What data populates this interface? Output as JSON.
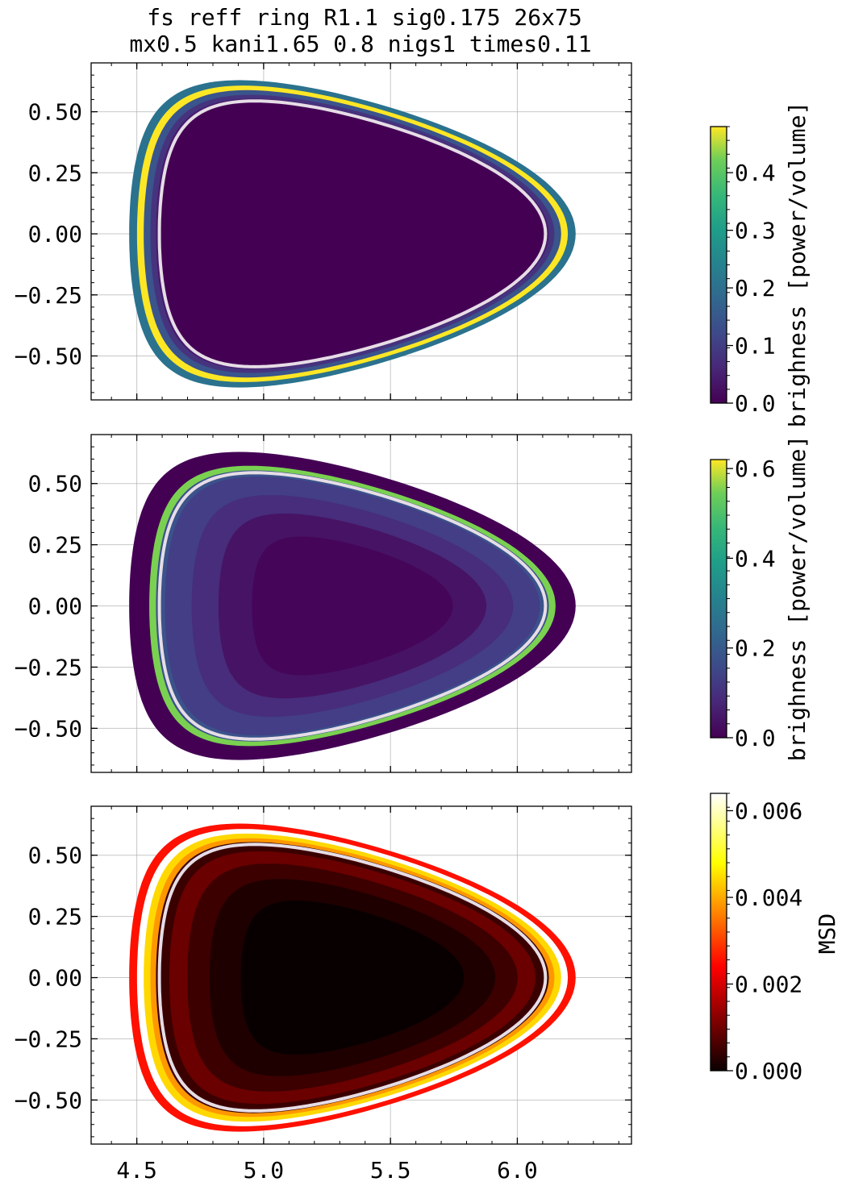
{
  "title_lines": [
    "fs reff ring R1.1 sig0.175 26x75",
    "mx0.5 kani1.65 0.8 nigs1 times0.11"
  ],
  "chart_data": [
    {
      "type": "heatmap",
      "panel": "top",
      "xlim": [
        4.32,
        6.45
      ],
      "ylim": [
        -0.68,
        0.7
      ],
      "x_ticks": [
        4.5,
        5.0,
        5.5,
        6.0
      ],
      "y_ticks": [
        "0.50",
        "0.25",
        "0.00",
        "−0.25",
        "−0.50"
      ],
      "grid": true,
      "colormap": "viridis",
      "colorbar": {
        "label": "brighness [power/volume]",
        "range": [
          0.0,
          0.48
        ],
        "ticks": [
          "0.0",
          "0.1",
          "0.2",
          "0.3",
          "0.4"
        ]
      },
      "shape": {
        "R0": 5.35,
        "minor_radius": 0.88,
        "kappa": 1.3,
        "delta": 0.53
      },
      "rings": [
        {
          "rho": 1.0,
          "color": "#2b728e"
        },
        {
          "rho": 0.965,
          "color": "#fde725"
        },
        {
          "rho": 0.935,
          "color": "#3a548c"
        },
        {
          "rho": 0.905,
          "color": "#46337e"
        },
        {
          "rho": 0.88,
          "color": "#481b6d"
        },
        {
          "rho": 0.86,
          "color": "#440154"
        }
      ],
      "separatrix_rho": 0.865
    },
    {
      "type": "heatmap",
      "panel": "middle",
      "xlim": [
        4.32,
        6.45
      ],
      "ylim": [
        -0.68,
        0.7
      ],
      "x_ticks": [
        4.5,
        5.0,
        5.5,
        6.0
      ],
      "y_ticks": [
        "0.50",
        "0.25",
        "0.00",
        "−0.25",
        "−0.50"
      ],
      "grid": true,
      "colormap": "viridis",
      "colorbar": {
        "label": "brighness [power/volume]",
        "range": [
          0.0,
          0.62
        ],
        "ticks": [
          "0.0",
          "0.2",
          "0.4",
          "0.6"
        ]
      },
      "shape": {
        "R0": 5.35,
        "minor_radius": 0.88,
        "kappa": 1.3,
        "delta": 0.53
      },
      "rings": [
        {
          "rho": 1.0,
          "color": "#440154"
        },
        {
          "rho": 0.91,
          "color": "#7ad151"
        },
        {
          "rho": 0.88,
          "color": "#3b528b"
        },
        {
          "rho": 0.84,
          "color": "#433e85"
        },
        {
          "rho": 0.72,
          "color": "#472d7b"
        },
        {
          "rho": 0.6,
          "color": "#471365"
        },
        {
          "rho": 0.45,
          "color": "#450559"
        }
      ],
      "separatrix_rho": 0.865
    },
    {
      "type": "heatmap",
      "panel": "bottom",
      "xlim": [
        4.32,
        6.45
      ],
      "ylim": [
        -0.68,
        0.7
      ],
      "x_ticks": [
        "4.5",
        "5.0",
        "5.5",
        "6.0"
      ],
      "y_ticks": [
        "0.50",
        "0.25",
        "0.00",
        "−0.25",
        "−0.50"
      ],
      "grid": true,
      "colormap": "hot",
      "colorbar": {
        "label": "MSD",
        "range": [
          0.0,
          0.0064
        ],
        "ticks": [
          "0.000",
          "0.002",
          "0.004",
          "0.006"
        ]
      },
      "shape": {
        "R0": 5.35,
        "minor_radius": 0.88,
        "kappa": 1.3,
        "delta": 0.53
      },
      "rings": [
        {
          "rho": 1.0,
          "color": "#ff1000"
        },
        {
          "rho": 0.965,
          "color": "#ffffff"
        },
        {
          "rho": 0.935,
          "color": "#ffd800"
        },
        {
          "rho": 0.905,
          "color": "#ff9800"
        },
        {
          "rho": 0.88,
          "color": "#3a0000"
        },
        {
          "rho": 0.82,
          "color": "#6a0000"
        },
        {
          "rho": 0.74,
          "color": "#3c0000"
        },
        {
          "rho": 0.64,
          "color": "#1e0000"
        },
        {
          "rho": 0.5,
          "color": "#080000"
        }
      ],
      "separatrix_rho": 0.865
    }
  ]
}
